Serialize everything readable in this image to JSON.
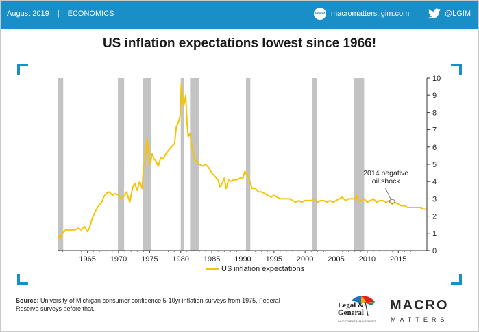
{
  "header": {
    "date": "August 2019",
    "separator": "|",
    "section": "ECONOMICS",
    "website": "macromatters.lgim.com",
    "web_icon": "www-icon",
    "twitter_icon": "twitter-bird-icon",
    "twitter_handle": "@LGIM",
    "bar_color": "#1a8ec7"
  },
  "chart_data": {
    "type": "line",
    "title": "US inflation expectations lowest since 1966!",
    "xlabel": "",
    "ylabel": "",
    "xlim": [
      1960.3,
      2019.6
    ],
    "ylim": [
      0,
      10
    ],
    "x_ticks": [
      "1965",
      "1970",
      "1975",
      "1980",
      "1985",
      "1990",
      "1995",
      "2000",
      "2005",
      "2010",
      "2015"
    ],
    "y_ticks": [
      "0",
      "1",
      "2",
      "3",
      "4",
      "5",
      "6",
      "7",
      "8",
      "9",
      "10"
    ],
    "y_axis_side": "right",
    "grid": false,
    "legend_position": "bottom",
    "line_color": "#f5c400",
    "recession_color": "#c3c3c3",
    "reference_line": 2.4,
    "recessions": [
      [
        1960.3,
        1961.1
      ],
      [
        1969.9,
        1970.9
      ],
      [
        1973.9,
        1975.2
      ],
      [
        1980.0,
        1980.5
      ],
      [
        1981.5,
        1982.9
      ],
      [
        1990.5,
        1991.2
      ],
      [
        2001.2,
        2001.9
      ],
      [
        2007.9,
        2009.5
      ]
    ],
    "series": [
      {
        "name": "US inflation expectations",
        "x": [
          1960.3,
          1960.6,
          1961.0,
          1961.5,
          1962,
          1963,
          1963.5,
          1964,
          1964.5,
          1965,
          1965.3,
          1965.8,
          1966.3,
          1966.8,
          1967.3,
          1967.6,
          1968,
          1968.5,
          1969,
          1969.5,
          1970,
          1970.5,
          1971,
          1971.3,
          1971.8,
          1972.3,
          1972.6,
          1973,
          1973.4,
          1973.8,
          1974,
          1974.3,
          1974.6,
          1974.9,
          1975.1,
          1975.4,
          1975.7,
          1976,
          1976.4,
          1976.8,
          1977.2,
          1977.6,
          1978,
          1978.5,
          1979,
          1979.3,
          1979.6,
          1979.9,
          1980.1,
          1980.3,
          1980.5,
          1980.8,
          1981,
          1981.2,
          1981.5,
          1981.8,
          1982.2,
          1982.6,
          1983,
          1983.5,
          1984,
          1984.5,
          1985,
          1985.5,
          1986,
          1986.3,
          1986.7,
          1987,
          1987.3,
          1987.7,
          1988,
          1988.5,
          1989,
          1989.5,
          1990,
          1990.3,
          1990.6,
          1990.9,
          1991.2,
          1991.5,
          1992,
          1992.5,
          1993,
          1993.5,
          1994,
          1994.5,
          1995,
          1995.5,
          1996,
          1996.5,
          1997,
          1997.5,
          1998,
          1998.5,
          1999,
          1999.5,
          2000,
          2000.5,
          2001,
          2001.5,
          2002,
          2002.5,
          2003,
          2003.5,
          2004,
          2004.5,
          2005,
          2005.5,
          2006,
          2006.5,
          2007,
          2007.5,
          2008,
          2008.3,
          2008.6,
          2009,
          2009.5,
          2010,
          2010.5,
          2011,
          2011.5,
          2012,
          2012.5,
          2013,
          2013.5,
          2014,
          2014.5,
          2015,
          2015.5,
          2016,
          2016.5,
          2017,
          2017.5,
          2018,
          2018.5,
          2019,
          2019.5
        ],
        "y": [
          0.9,
          0.7,
          1.0,
          1.2,
          1.2,
          1.2,
          1.3,
          1.2,
          1.4,
          1.1,
          1.3,
          1.9,
          2.3,
          2.6,
          2.8,
          3.1,
          3.3,
          3.4,
          3.2,
          3.3,
          3.2,
          3.0,
          3.2,
          3.4,
          2.8,
          3.7,
          3.9,
          3.5,
          4.0,
          3.6,
          4.8,
          5.2,
          6.5,
          5.4,
          5.0,
          5.6,
          5.3,
          5.2,
          4.9,
          5.4,
          5.3,
          5.6,
          5.8,
          6.0,
          6.2,
          7.2,
          7.4,
          7.8,
          9.7,
          8.7,
          8.4,
          9.0,
          7.5,
          6.6,
          6.8,
          6.0,
          5.4,
          5.1,
          5.0,
          4.9,
          5.0,
          4.8,
          4.5,
          4.3,
          4.1,
          3.7,
          3.9,
          4.2,
          3.6,
          4.1,
          4.0,
          4.1,
          4.1,
          4.2,
          4.2,
          4.6,
          4.4,
          4.3,
          3.9,
          3.6,
          3.6,
          3.4,
          3.4,
          3.3,
          3.2,
          3.1,
          3.2,
          3.1,
          3.0,
          3.0,
          3.0,
          3.0,
          2.9,
          2.8,
          2.9,
          2.8,
          2.9,
          2.9,
          2.9,
          3.0,
          2.8,
          2.9,
          2.9,
          2.8,
          2.9,
          2.8,
          2.9,
          3.0,
          3.1,
          2.9,
          3.0,
          3.0,
          3.0,
          3.2,
          2.8,
          2.9,
          3.0,
          2.8,
          2.9,
          3.0,
          2.8,
          2.9,
          2.9,
          2.8,
          2.9,
          2.7,
          2.8,
          2.7,
          2.6,
          2.6,
          2.5,
          2.5,
          2.5,
          2.5,
          2.5,
          2.4,
          2.4
        ]
      }
    ],
    "annotation": {
      "text_line1": "2014 negative",
      "text_line2": "oil shock",
      "x": 2014.0,
      "y": 2.85
    }
  },
  "legend": {
    "label": "US inflation expectations"
  },
  "source": {
    "label": "Source:",
    "text": "University of Michigan consumer confidence 5-10yr inflation surveys from 1975, Federal Reserve surveys before that."
  },
  "logo_lg": {
    "line1": "Legal &",
    "line2": "General",
    "sub": "INVESTMENT MANAGEMENT"
  },
  "logo_macro": {
    "word1": "MACRO",
    "word2": "MATTERS"
  }
}
